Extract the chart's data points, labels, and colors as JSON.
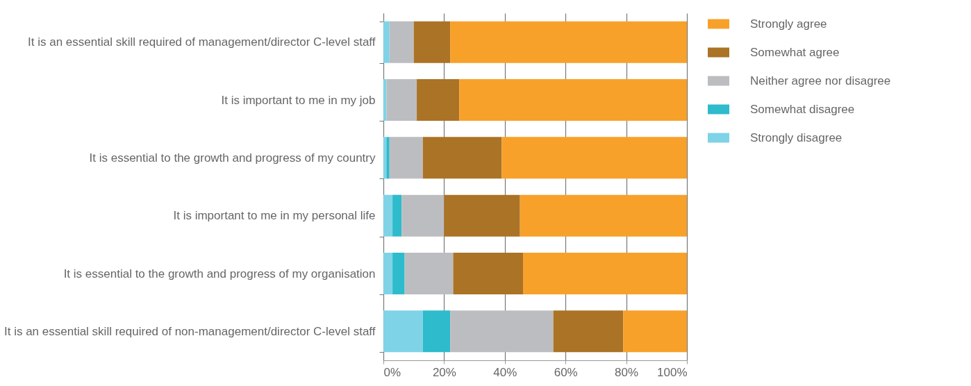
{
  "chart_data": {
    "type": "bar",
    "orientation": "horizontal",
    "stacked": true,
    "categories": [
      "It is an essential skill required of management/director C-level staff",
      "It is important to me in my job",
      "It is essential to the growth and progress of my country",
      "It is important to me in my personal life",
      "It is essential to the growth and progress of my organisation",
      "It is an essential skill required of non-management/director C-level staff"
    ],
    "series": [
      {
        "name": "Strongly disagree",
        "color": "#7fd3e6",
        "values": [
          2,
          1,
          1,
          3,
          3,
          13
        ]
      },
      {
        "name": "Somewhat disagree",
        "color": "#2ebbcc",
        "values": [
          0,
          0,
          1,
          3,
          4,
          9
        ]
      },
      {
        "name": "Neither agree nor disagree",
        "color": "#bcbdc0",
        "values": [
          8,
          10,
          11,
          14,
          16,
          34
        ]
      },
      {
        "name": "Somewhat agree",
        "color": "#ab7325",
        "values": [
          12,
          14,
          26,
          25,
          23,
          23
        ]
      },
      {
        "name": "Strongly agree",
        "color": "#f7a12b",
        "values": [
          78,
          75,
          61,
          55,
          54,
          21
        ]
      }
    ],
    "xlim": [
      0,
      100
    ],
    "xticks": [
      {
        "value": 0,
        "label": "0%"
      },
      {
        "value": 20,
        "label": "20%"
      },
      {
        "value": 40,
        "label": "40%"
      },
      {
        "value": 60,
        "label": "60%"
      },
      {
        "value": 80,
        "label": "80%"
      },
      {
        "value": 100,
        "label": "100%"
      }
    ],
    "grid": "x",
    "legend": "top right"
  }
}
